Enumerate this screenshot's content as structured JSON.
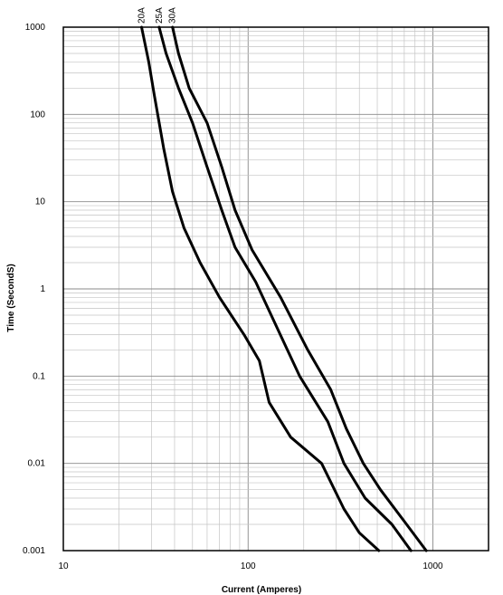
{
  "chart_data": {
    "type": "line",
    "xscale": "log",
    "yscale": "log",
    "xlim": [
      10,
      2000
    ],
    "ylim": [
      0.001,
      1000
    ],
    "xlabel": "Current  (Amperes)",
    "ylabel": "Time (SecondS)",
    "x_ticks": [
      {
        "value": 10,
        "label": "10"
      },
      {
        "value": 100,
        "label": "100"
      },
      {
        "value": 1000,
        "label": "1000"
      }
    ],
    "y_ticks": [
      {
        "value": 1000,
        "label": "1000"
      },
      {
        "value": 100,
        "label": "100"
      },
      {
        "value": 10,
        "label": "10"
      },
      {
        "value": 1,
        "label": "1"
      },
      {
        "value": 0.1,
        "label": "0.1"
      },
      {
        "value": 0.01,
        "label": "0.01"
      },
      {
        "value": 0.001,
        "label": "0.001"
      }
    ],
    "grid": true,
    "series": [
      {
        "name": "20A",
        "points": [
          [
            26.5,
            1000
          ],
          [
            29,
            400
          ],
          [
            31,
            170
          ],
          [
            35,
            40
          ],
          [
            39,
            13
          ],
          [
            45,
            5
          ],
          [
            55,
            2
          ],
          [
            70,
            0.8
          ],
          [
            95,
            0.3
          ],
          [
            115,
            0.15
          ],
          [
            130,
            0.05
          ],
          [
            170,
            0.02
          ],
          [
            250,
            0.01
          ],
          [
            330,
            0.003
          ],
          [
            400,
            0.0016
          ],
          [
            510,
            0.001
          ]
        ]
      },
      {
        "name": "25A",
        "points": [
          [
            33,
            1000
          ],
          [
            36,
            500
          ],
          [
            42,
            200
          ],
          [
            50,
            80
          ],
          [
            60,
            25
          ],
          [
            72,
            8
          ],
          [
            85,
            3
          ],
          [
            110,
            1.2
          ],
          [
            140,
            0.4
          ],
          [
            190,
            0.1
          ],
          [
            270,
            0.03
          ],
          [
            330,
            0.01
          ],
          [
            430,
            0.004
          ],
          [
            600,
            0.002
          ],
          [
            760,
            0.001
          ]
        ]
      },
      {
        "name": "30A",
        "points": [
          [
            39,
            1000
          ],
          [
            42,
            500
          ],
          [
            48,
            200
          ],
          [
            60,
            80
          ],
          [
            72,
            25
          ],
          [
            85,
            8
          ],
          [
            105,
            2.8
          ],
          [
            150,
            0.8
          ],
          [
            210,
            0.2
          ],
          [
            280,
            0.07
          ],
          [
            340,
            0.025
          ],
          [
            420,
            0.01
          ],
          [
            520,
            0.005
          ],
          [
            720,
            0.002
          ],
          [
            920,
            0.001
          ]
        ]
      }
    ]
  }
}
